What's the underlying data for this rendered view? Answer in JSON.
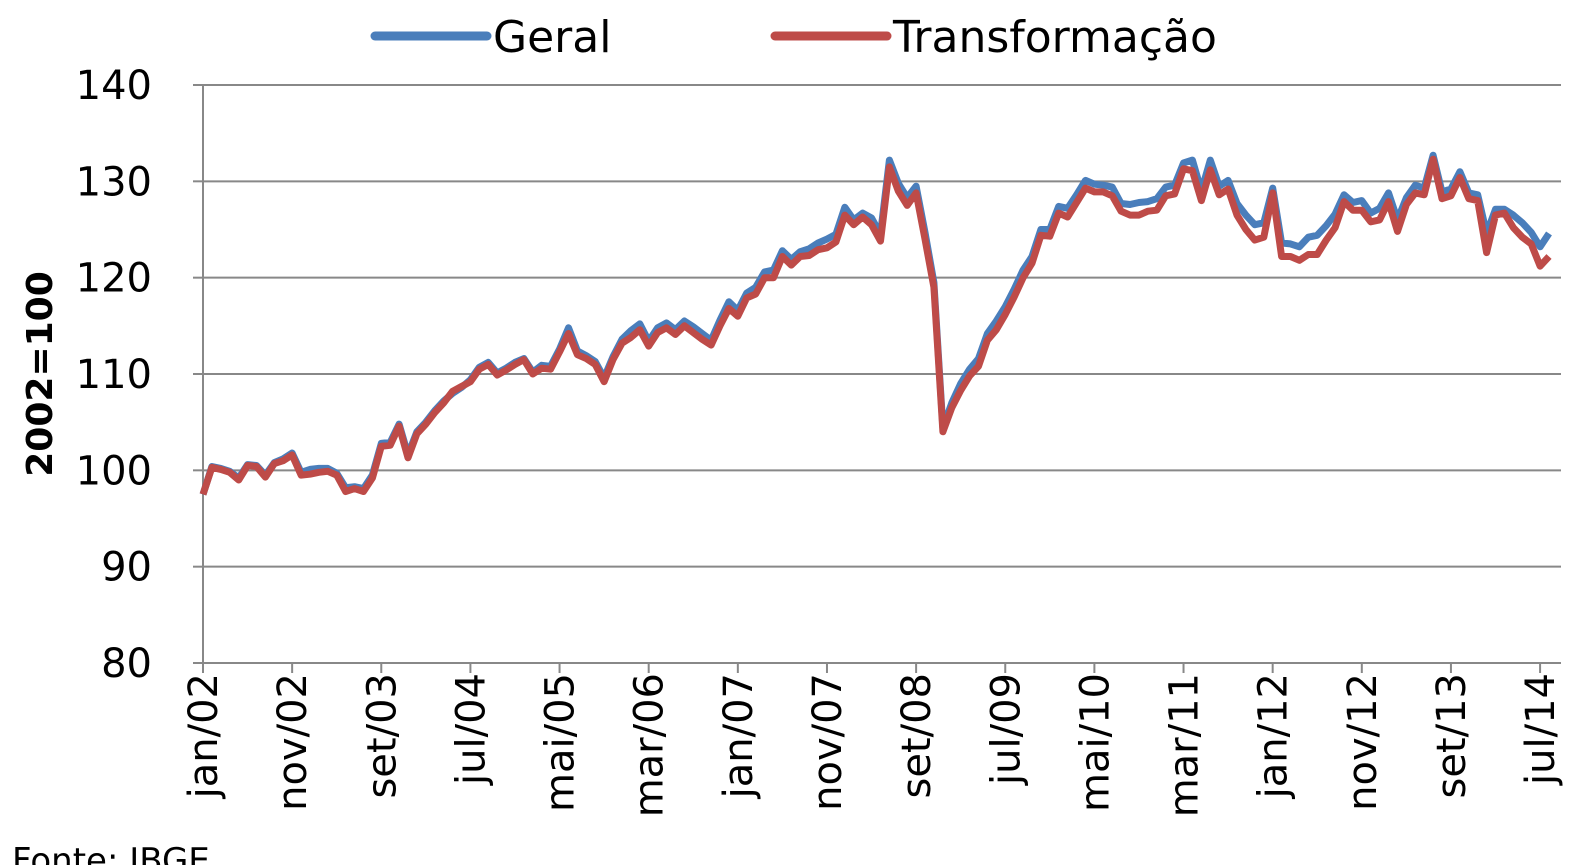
{
  "chart_data": {
    "type": "line",
    "y_label": "2002=100",
    "source": "Fonte: IBGE",
    "categories": [
      "jan/02",
      null,
      null,
      null,
      null,
      null,
      null,
      null,
      null,
      null,
      "nov/02",
      null,
      null,
      null,
      null,
      null,
      null,
      null,
      null,
      null,
      "set/03",
      null,
      null,
      null,
      null,
      null,
      null,
      null,
      null,
      null,
      "jul/04",
      null,
      null,
      null,
      null,
      null,
      null,
      null,
      null,
      null,
      "mai/05",
      null,
      null,
      null,
      null,
      null,
      null,
      null,
      null,
      null,
      "mar/06",
      null,
      null,
      null,
      null,
      null,
      null,
      null,
      null,
      null,
      "jan/07",
      null,
      null,
      null,
      null,
      null,
      null,
      null,
      null,
      null,
      "nov/07",
      null,
      null,
      null,
      null,
      null,
      null,
      null,
      null,
      null,
      "set/08",
      null,
      null,
      null,
      null,
      null,
      null,
      null,
      null,
      null,
      "jul/09",
      null,
      null,
      null,
      null,
      null,
      null,
      null,
      null,
      null,
      "mai/10",
      null,
      null,
      null,
      null,
      null,
      null,
      null,
      null,
      null,
      "mar/11",
      null,
      null,
      null,
      null,
      null,
      null,
      null,
      null,
      null,
      "jan/12",
      null,
      null,
      null,
      null,
      null,
      null,
      null,
      null,
      null,
      "nov/12",
      null,
      null,
      null,
      null,
      null,
      null,
      null,
      null,
      null,
      "set/13",
      null,
      null,
      null,
      null,
      null,
      null,
      null,
      null,
      null,
      "jul/14",
      null
    ],
    "series": [
      {
        "name": "Geral",
        "color": "#4a7ebb",
        "values": [
          97.5,
          100.4,
          100.2,
          99.9,
          99.2,
          100.6,
          100.5,
          99.5,
          100.8,
          101.2,
          101.8,
          99.8,
          100.1,
          100.2,
          100.2,
          99.7,
          98.2,
          98.3,
          98.1,
          99.5,
          102.8,
          102.9,
          104.8,
          101.6,
          104.0,
          105.0,
          106.2,
          107.2,
          108.0,
          108.6,
          109.4,
          110.7,
          111.2,
          110.1,
          110.6,
          111.2,
          111.6,
          110.2,
          110.9,
          110.8,
          112.6,
          114.8,
          112.4,
          111.9,
          111.3,
          109.6,
          111.8,
          113.6,
          114.5,
          115.2,
          113.4,
          114.8,
          115.3,
          114.6,
          115.5,
          114.9,
          114.2,
          113.5,
          115.6,
          117.5,
          116.6,
          118.4,
          119.0,
          120.6,
          120.8,
          122.8,
          121.9,
          122.7,
          123.0,
          123.6,
          124.0,
          124.5,
          127.3,
          126.0,
          126.7,
          126.2,
          124.5,
          132.2,
          129.8,
          128.3,
          129.5,
          124.7,
          119.5,
          104.4,
          107.0,
          109.0,
          110.5,
          111.6,
          114.2,
          115.5,
          117.0,
          118.8,
          120.8,
          122.2,
          125.0,
          125.0,
          127.4,
          127.2,
          128.6,
          130.1,
          129.7,
          129.6,
          129.4,
          127.7,
          127.6,
          127.8,
          127.9,
          128.2,
          129.4,
          129.6,
          131.9,
          132.2,
          129.0,
          132.2,
          129.5,
          130.1,
          127.7,
          126.5,
          125.5,
          125.7,
          129.3,
          123.6,
          123.5,
          123.2,
          124.2,
          124.4,
          125.4,
          126.6,
          128.6,
          127.8,
          128.0,
          126.7,
          127.2,
          128.8,
          126.0,
          128.3,
          129.6,
          129.3,
          132.7,
          128.9,
          129.2,
          131.0,
          128.8,
          128.6,
          124.6,
          127.1,
          127.1,
          126.5,
          125.7,
          124.7,
          123.2,
          124.6
        ]
      },
      {
        "name": "Transformação",
        "color": "#be4b48",
        "values": [
          97.5,
          100.3,
          100.1,
          99.8,
          99.0,
          100.5,
          100.4,
          99.3,
          100.7,
          101.0,
          101.6,
          99.5,
          99.6,
          99.8,
          99.9,
          99.5,
          97.8,
          98.1,
          97.8,
          99.2,
          102.5,
          102.6,
          104.6,
          101.3,
          103.8,
          104.8,
          106.0,
          107.0,
          108.2,
          108.7,
          109.2,
          110.5,
          111.0,
          109.9,
          110.4,
          111.0,
          111.5,
          110.0,
          110.6,
          110.5,
          112.3,
          114.2,
          112.0,
          111.6,
          111.0,
          109.2,
          111.5,
          113.2,
          113.8,
          114.6,
          112.9,
          114.3,
          114.8,
          114.1,
          115.0,
          114.3,
          113.6,
          113.0,
          115.0,
          116.8,
          116.0,
          117.9,
          118.3,
          120.0,
          120.0,
          122.2,
          121.3,
          122.2,
          122.3,
          122.9,
          123.1,
          123.7,
          126.5,
          125.5,
          126.3,
          125.5,
          123.8,
          131.5,
          129.0,
          127.5,
          128.8,
          124.0,
          119.0,
          104.0,
          106.5,
          108.3,
          109.8,
          110.8,
          113.5,
          114.6,
          116.2,
          118.0,
          120.0,
          121.5,
          124.4,
          124.3,
          126.7,
          126.3,
          127.8,
          129.3,
          128.9,
          128.9,
          128.5,
          126.9,
          126.5,
          126.5,
          126.9,
          127.0,
          128.5,
          128.7,
          131.3,
          131.1,
          128.0,
          131.2,
          128.6,
          129.2,
          126.5,
          125.0,
          123.9,
          124.2,
          128.8,
          122.2,
          122.2,
          121.8,
          122.4,
          122.4,
          123.9,
          125.2,
          127.9,
          127.0,
          127.0,
          125.8,
          126.0,
          127.9,
          124.8,
          127.6,
          128.8,
          128.6,
          132.3,
          128.2,
          128.5,
          130.4,
          128.2,
          128.0,
          122.6,
          126.5,
          126.7,
          125.2,
          124.2,
          123.5,
          121.2,
          122.2
        ]
      }
    ],
    "ylim": [
      80,
      140
    ],
    "yticks": [
      80,
      90,
      100,
      110,
      120,
      130,
      140
    ],
    "grid": true,
    "legend": "top"
  }
}
